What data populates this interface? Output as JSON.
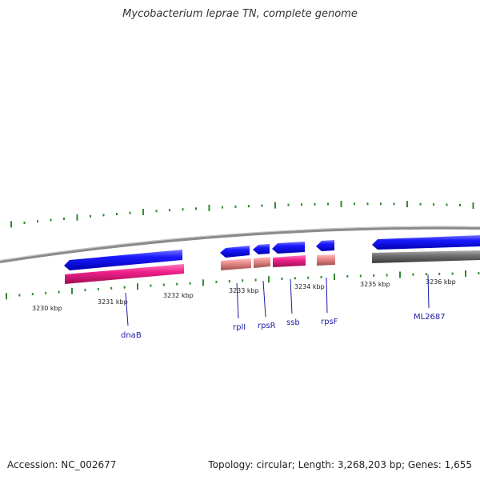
{
  "title": "Mycobacterium leprae TN, complete genome",
  "footer": {
    "accession": "Accession: NC_002677",
    "summary": "Topology: circular; Length: 3,268,203 bp; Genes: 1,655"
  },
  "kbp_ticks": [
    "3230 kbp",
    "3231 kbp",
    "3232 kbp",
    "3233 kbp",
    "3234 kbp",
    "3235 kbp",
    "3236 kbp"
  ],
  "gene_labels": [
    "dnaB",
    "rplI",
    "rpsR",
    "ssb",
    "rpsF",
    "ML2687"
  ],
  "colors": {
    "cds": "#1010e8",
    "gene_rna": "#e8197f",
    "gene_light": "#e88a8a",
    "pseudo": "#6e6e6e",
    "tick": "#2e8b2e",
    "backbone": "#8a8a8a",
    "label": "#1a1aa6"
  }
}
